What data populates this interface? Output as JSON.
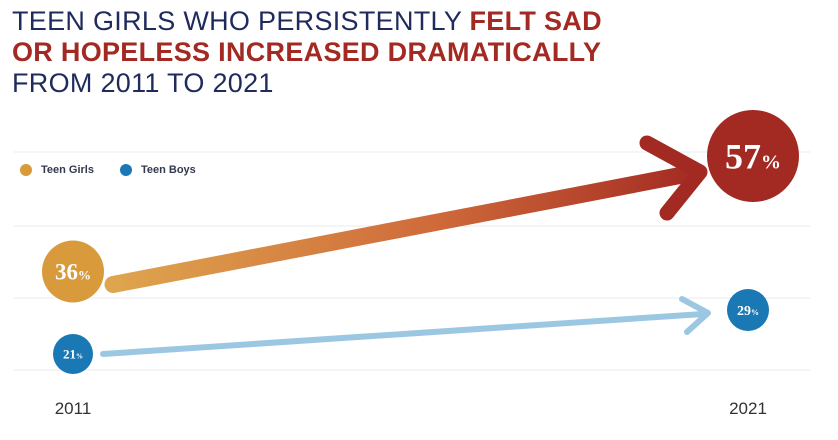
{
  "title": {
    "part1": "TEEN GIRLS WHO PERSISTENTLY ",
    "highlight1": "FELT SAD",
    "highlight2": "OR HOPELESS INCREASED DRAMATICALLY",
    "part3": "FROM 2011 TO 2021"
  },
  "chart_data": {
    "type": "line",
    "title": "TEEN GIRLS WHO PERSISTENTLY FELT SAD OR HOPELESS INCREASED DRAMATICALLY FROM 2011 TO 2021",
    "categories": [
      "2011",
      "2021"
    ],
    "series": [
      {
        "name": "Teen Girls",
        "values": [
          36,
          57
        ],
        "labels": [
          "36",
          "57"
        ],
        "color": "#d89a3b",
        "end_color": "#a32a22"
      },
      {
        "name": "Teen Boys",
        "values": [
          21,
          29
        ],
        "labels": [
          "21",
          "29"
        ],
        "color": "#1a78b4",
        "line_color": "#9cc7e3"
      }
    ],
    "unit": "%",
    "legend_position": "top-left",
    "grid": true
  }
}
